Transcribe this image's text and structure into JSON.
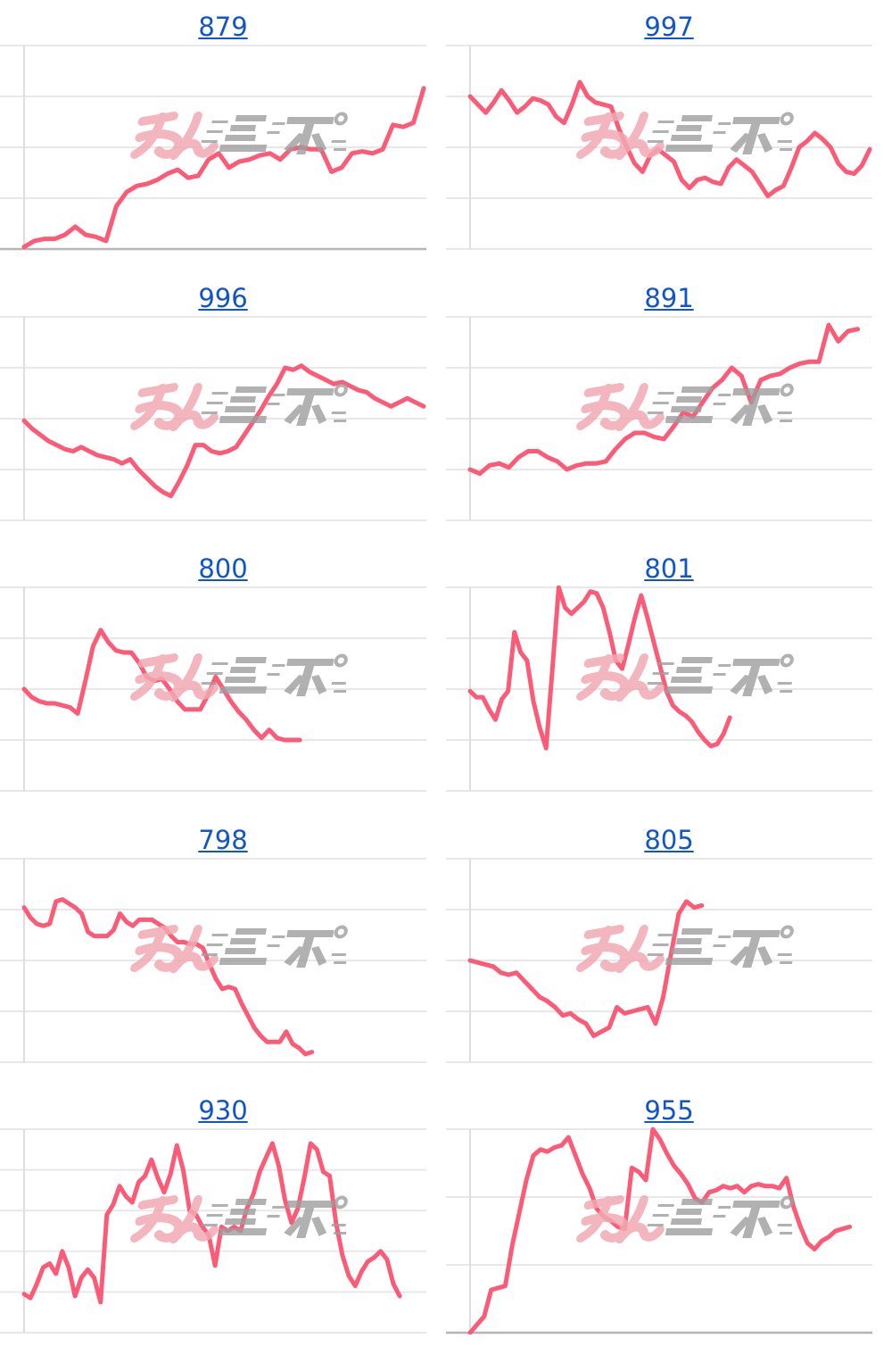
{
  "page": {
    "background": "#FFFFFF"
  },
  "style": {
    "line_color": "#FB5B76",
    "line_width": 5,
    "grid_color": "#E8E8E8",
    "axis_color": "#DEDEDE",
    "baseline_color": "#B5B5B5",
    "title_color": "#1155CC"
  },
  "watermark": {
    "pink_text": "みん",
    "gray_text": "レポ",
    "pink_color": "#F2A9B3",
    "gray_color": "#9E9E9E"
  },
  "value_units": "percent of plot height (0 = bottom gridline, 100 = top gridline); no axis tick labels are visible",
  "chart_data": [
    {
      "title": "879",
      "type": "line",
      "gridline_count": 5,
      "baseline_dark": true,
      "x_extent": 1.0,
      "values": [
        1,
        4,
        5,
        5,
        7,
        11,
        7,
        6,
        4,
        21,
        28,
        31,
        32,
        34,
        37,
        39,
        35,
        36,
        44,
        47,
        40,
        43,
        44,
        46,
        47,
        44,
        49,
        50,
        49,
        49,
        38,
        40,
        47,
        48,
        47,
        49,
        61,
        60,
        62,
        79
      ]
    },
    {
      "title": "997",
      "type": "line",
      "gridline_count": 5,
      "baseline_dark": false,
      "x_extent": 1.0,
      "values": [
        75,
        71,
        67,
        72,
        78,
        73,
        67,
        70,
        74,
        73,
        71,
        65,
        62,
        71,
        82,
        75,
        72,
        71,
        70,
        59,
        50,
        42,
        38,
        46,
        49,
        46,
        43,
        34,
        30,
        34,
        35,
        33,
        32,
        40,
        44,
        41,
        38,
        32,
        26,
        29,
        31,
        40,
        50,
        53,
        57,
        54,
        50,
        42,
        38,
        37,
        41,
        49
      ]
    },
    {
      "title": "996",
      "type": "line",
      "gridline_count": 5,
      "baseline_dark": false,
      "x_extent": 1.0,
      "values": [
        49,
        45,
        42,
        39,
        37,
        35,
        34,
        36,
        34,
        32,
        31,
        30,
        28,
        30,
        25,
        21,
        17,
        14,
        12,
        19,
        27,
        37,
        37,
        34,
        33,
        34,
        36,
        42,
        48,
        54,
        61,
        67,
        75,
        74,
        76,
        73,
        71,
        69,
        67,
        68,
        66,
        64,
        63,
        60,
        58,
        56,
        58,
        60,
        58,
        56
      ]
    },
    {
      "title": "891",
      "type": "line",
      "gridline_count": 5,
      "baseline_dark": false,
      "x_extent": 0.97,
      "values": [
        25,
        23,
        27,
        28,
        26,
        31,
        34,
        34,
        31,
        29,
        25,
        27,
        28,
        28,
        29,
        35,
        40,
        43,
        43,
        41,
        40,
        46,
        53,
        51,
        58,
        65,
        69,
        75,
        71,
        58,
        69,
        71,
        72,
        75,
        77,
        78,
        78,
        96,
        88,
        93,
        94
      ]
    },
    {
      "title": "800",
      "type": "line",
      "gridline_count": 5,
      "baseline_dark": false,
      "x_extent": 0.69,
      "values": [
        50,
        46,
        44,
        43,
        43,
        42,
        41,
        38,
        54,
        71,
        79,
        73,
        69,
        68,
        68,
        63,
        56,
        54,
        55,
        50,
        44,
        40,
        40,
        40,
        47,
        56,
        50,
        44,
        39,
        35,
        30,
        26,
        30,
        26,
        25,
        25,
        25
      ]
    },
    {
      "title": "801",
      "type": "line",
      "gridline_count": 5,
      "baseline_dark": false,
      "x_extent": 0.65,
      "values": [
        49,
        46,
        46,
        40,
        35,
        45,
        49,
        78,
        68,
        64,
        44,
        31,
        21,
        60,
        100,
        90,
        87,
        90,
        93,
        98,
        97,
        90,
        78,
        64,
        60,
        72,
        85,
        96,
        85,
        73,
        61,
        49,
        42,
        39,
        37,
        34,
        29,
        25,
        22,
        23,
        28,
        36
      ]
    },
    {
      "title": "798",
      "type": "line",
      "gridline_count": 5,
      "baseline_dark": false,
      "x_extent": 0.72,
      "values": [
        76,
        71,
        68,
        67,
        68,
        79,
        80,
        78,
        76,
        73,
        64,
        62,
        62,
        62,
        65,
        73,
        69,
        67,
        70,
        70,
        70,
        68,
        66,
        62,
        59,
        59,
        58,
        58,
        56,
        48,
        41,
        36,
        37,
        36,
        29,
        23,
        17,
        13,
        10,
        10,
        10,
        15,
        9,
        7,
        4,
        5
      ]
    },
    {
      "title": "805",
      "type": "line",
      "gridline_count": 5,
      "baseline_dark": false,
      "x_extent": 0.58,
      "values": [
        50,
        49,
        48,
        47,
        44,
        43,
        44,
        40,
        36,
        32,
        30,
        27,
        23,
        24,
        21,
        19,
        13,
        15,
        17,
        27,
        24,
        25,
        26,
        27,
        19,
        32,
        53,
        73,
        79,
        76,
        77
      ]
    },
    {
      "title": "930",
      "type": "line",
      "gridline_count": 6,
      "baseline_dark": false,
      "x_extent": 0.94,
      "values": [
        19,
        17,
        24,
        32,
        34,
        29,
        40,
        32,
        18,
        27,
        31,
        27,
        15,
        58,
        63,
        72,
        67,
        64,
        74,
        77,
        85,
        76,
        69,
        78,
        92,
        80,
        60,
        58,
        52,
        48,
        33,
        52,
        50,
        52,
        50,
        61,
        68,
        79,
        86,
        93,
        82,
        65,
        54,
        61,
        76,
        93,
        90,
        79,
        77,
        54,
        38,
        28,
        23,
        30,
        35,
        37,
        40,
        36,
        24,
        18
      ]
    },
    {
      "title": "955",
      "type": "line",
      "gridline_count": 4,
      "baseline_dark": true,
      "x_extent": 0.95,
      "values": [
        0,
        4,
        8,
        21,
        22,
        23,
        43,
        59,
        75,
        87,
        90,
        89,
        91,
        92,
        96,
        87,
        78,
        71,
        61,
        57,
        55,
        52,
        51,
        81,
        79,
        75,
        100,
        95,
        88,
        82,
        78,
        73,
        66,
        64,
        69,
        70,
        72,
        71,
        72,
        69,
        72,
        73,
        72,
        72,
        71,
        76,
        62,
        52,
        44,
        41,
        45,
        47,
        50,
        51,
        52
      ]
    }
  ]
}
